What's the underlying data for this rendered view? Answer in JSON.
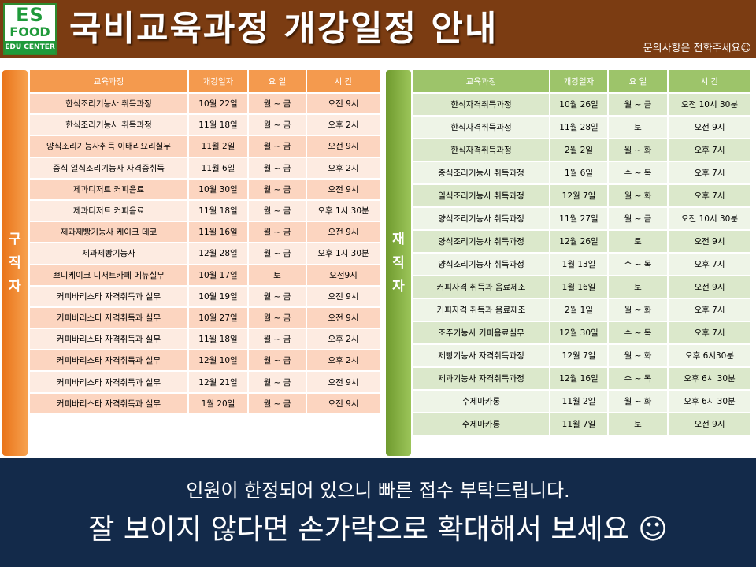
{
  "header": {
    "logo": {
      "line1": "ES",
      "line2": "FOOD",
      "line3": "EDU CENTER"
    },
    "title": "국비교육과정 개강일정 안내",
    "contact": "문의사항은 전화주세요☺"
  },
  "colors": {
    "header_bg": "#7b3c12",
    "orange": "#f49a4e",
    "green": "#9dc46a",
    "footer_bg": "#132a4a"
  },
  "left": {
    "label": [
      "구",
      "직",
      "자"
    ],
    "headers": [
      "교육과정",
      "개강일자",
      "요 일",
      "시 간"
    ],
    "rows": [
      [
        "한식조리기능사 취득과정",
        "10월 22일",
        "월 ~ 금",
        "오전 9시"
      ],
      [
        "한식조리기능사 취득과정",
        "11월 18일",
        "월 ~ 금",
        "오후 2시"
      ],
      [
        "양식조리기능사취득 이태리요리실무",
        "11월 2일",
        "월 ~ 금",
        "오전 9시"
      ],
      [
        "중식 일식조리기능사 자격증취득",
        "11월 6일",
        "월 ~ 금",
        "오후 2시"
      ],
      [
        "제과디저트 커피음료",
        "10월 30일",
        "월 ~ 금",
        "오전 9시"
      ],
      [
        "제과디저트 커피음료",
        "11월 18일",
        "월 ~ 금",
        "오후 1시 30분"
      ],
      [
        "제과제빵기능사 케이크 데코",
        "11월 16일",
        "월 ~ 금",
        "오전 9시"
      ],
      [
        "제과제빵기능사",
        "12월 28일",
        "월 ~ 금",
        "오후 1시 30분"
      ],
      [
        "쁘디케이크 디저트카페 메뉴실무",
        "10월 17일",
        "토",
        "오전9시"
      ],
      [
        "커피바리스타 자격취득과 실무",
        "10월 19일",
        "월 ~ 금",
        "오전 9시"
      ],
      [
        "커피바리스타 자격취득과 실무",
        "10월 27일",
        "월 ~ 금",
        "오전 9시"
      ],
      [
        "커피바리스타 자격취득과 실무",
        "11월 18일",
        "월 ~ 금",
        "오후 2시"
      ],
      [
        "커피바리스타 자격취득과 실무",
        "12월 10일",
        "월 ~ 금",
        "오후 2시"
      ],
      [
        "커피바리스타 자격취득과 실무",
        "12월 21일",
        "월 ~ 금",
        "오전 9시"
      ],
      [
        "커피바리스타 자격취득과 실무",
        "1월 20일",
        "월 ~ 금",
        "오전 9시"
      ]
    ]
  },
  "right": {
    "label": [
      "재",
      "직",
      "자"
    ],
    "headers": [
      "교육과정",
      "개강일자",
      "요 일",
      "시 간"
    ],
    "rows": [
      [
        "한식자격취득과정",
        "10월 26일",
        "월 ~ 금",
        "오전 10시 30분"
      ],
      [
        "한식자격취득과정",
        "11월 28일",
        "토",
        "오전 9시"
      ],
      [
        "한식자격취득과정",
        "2월 2일",
        "월 ~ 화",
        "오후 7시"
      ],
      [
        "중식조리기능사 취득과정",
        "1월 6일",
        "수 ~ 목",
        "오후 7시"
      ],
      [
        "일식조리기능사 취득과정",
        "12월 7일",
        "월 ~ 화",
        "오후 7시"
      ],
      [
        "양식조리기능사 취득과정",
        "11월 27일",
        "월 ~ 금",
        "오전 10시 30분"
      ],
      [
        "양식조리기능사 취득과정",
        "12월 26일",
        "토",
        "오전 9시"
      ],
      [
        "양식조리기능사 취득과정",
        "1월 13일",
        "수 ~ 목",
        "오후 7시"
      ],
      [
        "커피자격 취득과 음료제조",
        "1월 16일",
        "토",
        "오전 9시"
      ],
      [
        "커피자격 취득과 음료제조",
        "2월 1일",
        "월 ~ 화",
        "오후 7시"
      ],
      [
        "조주기능사 커피음료실무",
        "12월 30일",
        "수 ~ 목",
        "오후 7시"
      ],
      [
        "제빵기능사 자격취득과정",
        "12월 7일",
        "월 ~ 화",
        "오후 6시30분"
      ],
      [
        "제과기능사 자격취득과정",
        "12월 16일",
        "수 ~ 목",
        "오후 6시 30분"
      ],
      [
        "수제마카롱",
        "11월 2일",
        "월 ~ 화",
        "오후 6시 30분"
      ],
      [
        "수제마카롱",
        "11월 7일",
        "토",
        "오전 9시"
      ]
    ]
  },
  "footer": {
    "line1": "인원이 한정되어 있으니 빠른 접수 부탁드립니다.",
    "line2": "잘 보이지 않다면 손가락으로 확대해서 보세요 ☺"
  }
}
